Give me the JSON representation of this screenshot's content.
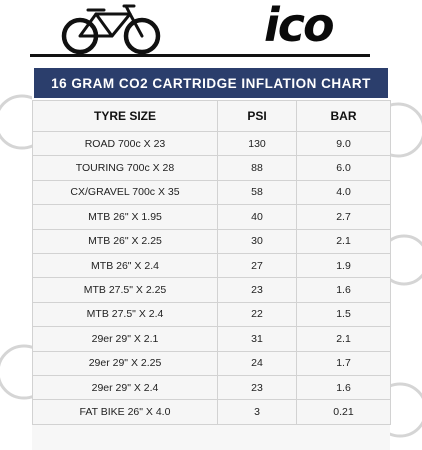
{
  "brand": {
    "logo_text": "ico"
  },
  "icons": {
    "header_bike": "bicycle-icon",
    "background": "bicycle-wheel-icon"
  },
  "colors": {
    "title_bar": "#2b3e6c",
    "title_text": "#ffffff"
  },
  "chart": {
    "title": "16 GRAM CO2 CARTRIDGE INFLATION CHART",
    "columns": [
      "TYRE SIZE",
      "PSI",
      "BAR"
    ],
    "rows": [
      [
        "ROAD 700c X 23",
        "130",
        "9.0"
      ],
      [
        "TOURING 700c X 28",
        "88",
        "6.0"
      ],
      [
        "CX/GRAVEL 700c X 35",
        "58",
        "4.0"
      ],
      [
        "MTB 26\" X 1.95",
        "40",
        "2.7"
      ],
      [
        "MTB 26\" X 2.25",
        "30",
        "2.1"
      ],
      [
        "MTB 26\" X 2.4",
        "27",
        "1.9"
      ],
      [
        "MTB 27.5\" X 2.25",
        "23",
        "1.6"
      ],
      [
        "MTB 27.5\" X 2.4",
        "22",
        "1.5"
      ],
      [
        "29er 29\" X 2.1",
        "31",
        "2.1"
      ],
      [
        "29er 29\" X 2.25",
        "24",
        "1.7"
      ],
      [
        "29er 29\" X 2.4",
        "23",
        "1.6"
      ],
      [
        "FAT BIKE 26\" X 4.0",
        "3",
        "0.21"
      ]
    ]
  }
}
